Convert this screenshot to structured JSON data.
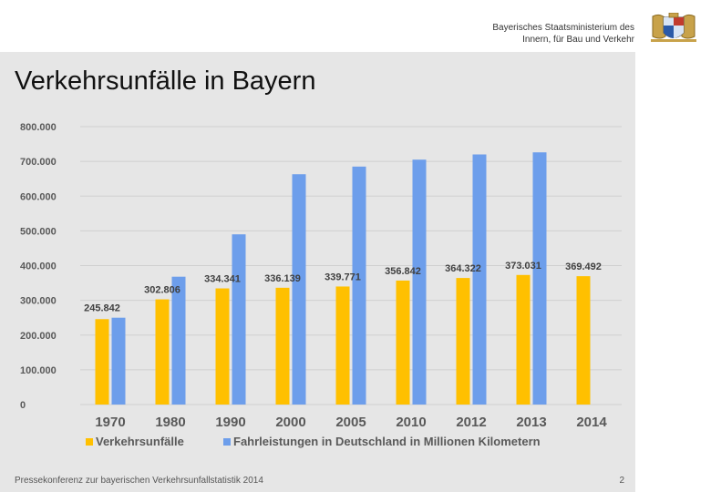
{
  "header": {
    "ministry_line1": "Bayerisches Staatsministerium des",
    "ministry_line2": "Innern, für Bau und Verkehr"
  },
  "slide": {
    "title": "Verkehrsunfälle in Bayern",
    "footer": "Pressekonferenz zur bayerischen Verkehrsunfallstatistik 2014",
    "page_number": "2"
  },
  "colors": {
    "accident": "#ffc000",
    "mileage": "#6d9eeb",
    "axis_text": "#595959",
    "data_label": "#404040",
    "gridline": "#d0d0d0"
  },
  "chart_data": {
    "type": "bar",
    "title": "",
    "xlabel": "",
    "ylabel": "",
    "categories": [
      "1970",
      "1980",
      "1990",
      "2000",
      "2005",
      "2010",
      "2012",
      "2013",
      "2014"
    ],
    "ylim": [
      0,
      800000
    ],
    "yticks": [
      0,
      100000,
      200000,
      300000,
      400000,
      500000,
      600000,
      700000,
      800000
    ],
    "ytick_labels": [
      "0",
      "100.000",
      "200.000",
      "300.000",
      "400.000",
      "500.000",
      "600.000",
      "700.000",
      "800.000"
    ],
    "legend_position": "bottom",
    "series": [
      {
        "name": "Verkehrsunfälle",
        "values": [
          245842,
          302806,
          334341,
          336139,
          339771,
          356842,
          364322,
          373031,
          369492
        ],
        "labels": [
          "245.842",
          "302.806",
          "334.341",
          "336.139",
          "339.771",
          "356.842",
          "364.322",
          "373.031",
          "369.492"
        ]
      },
      {
        "name": "Fahrleistungen in Deutschland in Millionen Kilometern",
        "values": [
          250000,
          368000,
          490000,
          663000,
          685000,
          705000,
          720000,
          726000,
          null
        ]
      }
    ]
  }
}
